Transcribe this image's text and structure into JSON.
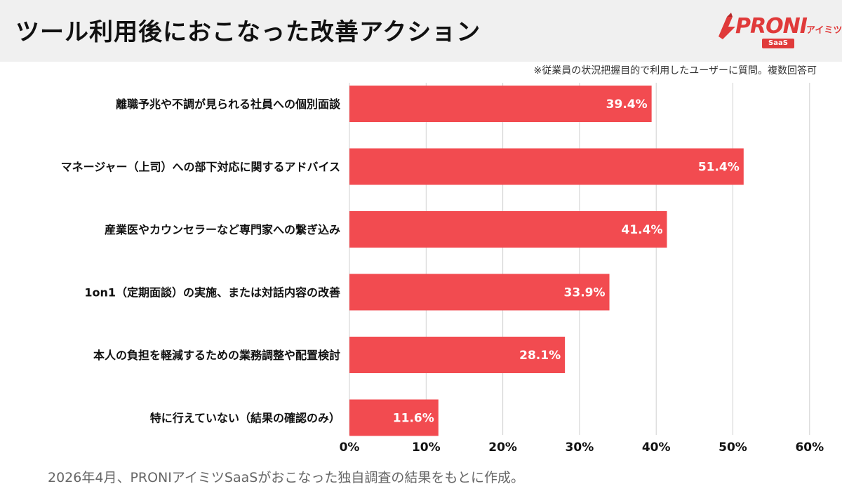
{
  "header": {
    "title": "ツール利用後におこなった改善アクション",
    "logo_text": "PRONI",
    "logo_sub": "アイミツ",
    "logo_badge": "SaaS"
  },
  "note": "※従業員の状況把握目的で利用したユーザーに質問。複数回答可",
  "footer": "2026年4月、PRONIアイミツSaaSがおこなった独自調査の結果をもとに作成。",
  "colors": {
    "bar": "#f24b50",
    "brand": "#e03a3a",
    "grid": "#d0d0d0",
    "header_bg": "#f0f0f0"
  },
  "chart_data": {
    "type": "bar",
    "orientation": "horizontal",
    "categories": [
      "離職予兆や不調が見られる社員への個別面談",
      "マネージャー（上司）への部下対応に関するアドバイス",
      "産業医やカウンセラーなど専門家への繋ぎ込み",
      "1on1（定期面談）の実施、または対話内容の改善",
      "本人の負担を軽減するための業務調整や配置検討",
      "特に行えていない（結果の確認のみ）"
    ],
    "values": [
      39.4,
      51.4,
      41.4,
      33.9,
      28.1,
      11.6
    ],
    "value_labels": [
      "39.4%",
      "51.4%",
      "41.4%",
      "33.9%",
      "28.1%",
      "11.6%"
    ],
    "x_ticks": [
      "0%",
      "10%",
      "20%",
      "30%",
      "40%",
      "50%",
      "60%"
    ],
    "xlim": [
      0,
      60
    ],
    "grid": true
  }
}
